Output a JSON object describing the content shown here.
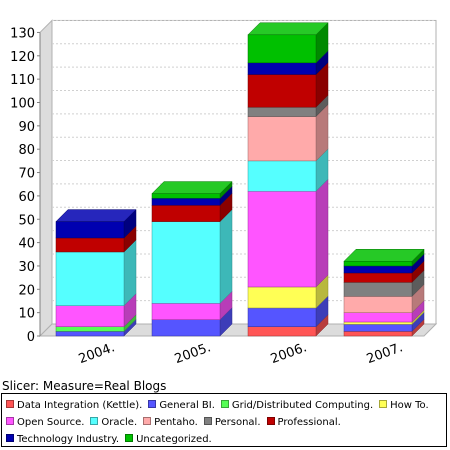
{
  "chart_data": {
    "type": "bar",
    "stacked": true,
    "three_d": true,
    "categories": [
      "2004.",
      "2005.",
      "2006.",
      "2007."
    ],
    "ylim": [
      0,
      130
    ],
    "yticks": [
      0,
      10,
      20,
      30,
      40,
      50,
      60,
      70,
      80,
      90,
      100,
      110,
      120,
      130
    ],
    "grid": true,
    "legend_placement": "bottom",
    "series": [
      {
        "name": "Data Integration (Kettle).",
        "color": "#ff5555",
        "values": [
          0,
          0,
          4,
          2
        ]
      },
      {
        "name": "General BI.",
        "color": "#5555ff",
        "values": [
          2,
          7,
          8,
          3
        ]
      },
      {
        "name": "Grid/Distributed Computing.",
        "color": "#55ff55",
        "values": [
          2,
          0,
          0,
          0
        ]
      },
      {
        "name": "How To.",
        "color": "#ffff55",
        "values": [
          0,
          0,
          9,
          1
        ]
      },
      {
        "name": "Open Source.",
        "color": "#ff55ff",
        "values": [
          9,
          7,
          41,
          4
        ]
      },
      {
        "name": "Oracle.",
        "color": "#55ffff",
        "values": [
          23,
          35,
          13,
          0
        ]
      },
      {
        "name": "Pentaho.",
        "color": "#ffaaaa",
        "values": [
          0,
          0,
          19,
          7
        ]
      },
      {
        "name": "Personal.",
        "color": "#808080",
        "values": [
          0,
          0,
          4,
          6
        ]
      },
      {
        "name": "Professional.",
        "color": "#c00000",
        "values": [
          6,
          7,
          14,
          4
        ]
      },
      {
        "name": "Technology Industry.",
        "color": "#0000b0",
        "values": [
          7,
          3,
          5,
          3
        ]
      },
      {
        "name": "Uncategorized.",
        "color": "#00c000",
        "values": [
          0,
          2,
          12,
          2
        ]
      }
    ]
  },
  "slicer_label": "Slicer: Measure=Real Blogs"
}
